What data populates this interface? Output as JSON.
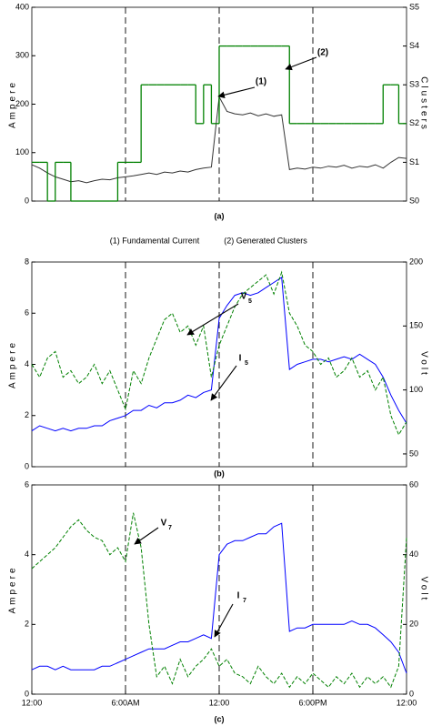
{
  "chart_data": [
    {
      "type": "line",
      "label": "(a)",
      "ylabel": "Ampere",
      "y2label": "Clusters",
      "xlim": [
        0,
        24
      ],
      "ylim": [
        0,
        400
      ],
      "yticks": [
        0,
        100,
        200,
        300,
        400
      ],
      "y2lim": [
        0,
        5
      ],
      "y2ticks": [
        {
          "value": 0,
          "label": "S0"
        },
        {
          "value": 1,
          "label": "S1"
        },
        {
          "value": 2,
          "label": "S2"
        },
        {
          "value": 3,
          "label": "S3"
        },
        {
          "value": 4,
          "label": "S4"
        },
        {
          "value": 5,
          "label": "S5"
        }
      ],
      "left_color": "#000000",
      "right_color": "#008000",
      "vlines": [
        6,
        12,
        18
      ],
      "legend": "bottom",
      "annotations": [
        {
          "text": "(1)"
        },
        {
          "text": "(2)"
        }
      ],
      "x": [
        0,
        0.5,
        1,
        1.5,
        2,
        2.5,
        3,
        3.5,
        4,
        4.5,
        5,
        5.5,
        6,
        6.5,
        7,
        7.5,
        8,
        8.5,
        9,
        9.5,
        10,
        10.5,
        11,
        11.5,
        12,
        12.5,
        13,
        13.5,
        14,
        14.5,
        15,
        15.5,
        16,
        16.5,
        17,
        17.5,
        18,
        18.5,
        19,
        19.5,
        20,
        20.5,
        21,
        21.5,
        22,
        22.5,
        23,
        23.5,
        24
      ],
      "series": [
        {
          "name": "(1) Fundamental Current",
          "color": "#333333",
          "style": "solid",
          "values": [
            75,
            68,
            58,
            50,
            45,
            40,
            42,
            38,
            42,
            45,
            44,
            48,
            50,
            52,
            55,
            58,
            55,
            60,
            58,
            62,
            60,
            65,
            68,
            70,
            215,
            185,
            180,
            178,
            182,
            176,
            180,
            175,
            178,
            65,
            68,
            66,
            70,
            68,
            72,
            70,
            74,
            68,
            72,
            70,
            75,
            68,
            80,
            90,
            88
          ]
        },
        {
          "name": "(2) Generated Clusters",
          "color": "#008000",
          "style": "step",
          "axis": "y2",
          "values": [
            1,
            1,
            0,
            1,
            1,
            0,
            0,
            0,
            0,
            0,
            0,
            1,
            1,
            1,
            3,
            3,
            3,
            3,
            3,
            3,
            3,
            2,
            3,
            2,
            4,
            4,
            4,
            4,
            4,
            4,
            4,
            4,
            4,
            2,
            2,
            2,
            2,
            2,
            2,
            2,
            2,
            2,
            2,
            2,
            2,
            3,
            3,
            2,
            2
          ]
        }
      ]
    },
    {
      "type": "line",
      "label": "(b)",
      "ylabel": "Ampere",
      "y2label": "Volt",
      "xlim": [
        0,
        24
      ],
      "ylim": [
        0,
        8
      ],
      "yticks": [
        0,
        2,
        4,
        6,
        8
      ],
      "y2lim": [
        40,
        200
      ],
      "y2ticks": [
        50,
        100,
        150,
        200
      ],
      "left_color": "#0000ff",
      "right_color": "#008000",
      "vlines": [
        6,
        12,
        18
      ],
      "annotations": [
        {
          "text": "V",
          "sub": "5"
        },
        {
          "text": "I",
          "sub": "5"
        }
      ],
      "x": [
        0,
        0.5,
        1,
        1.5,
        2,
        2.5,
        3,
        3.5,
        4,
        4.5,
        5,
        5.5,
        6,
        6.5,
        7,
        7.5,
        8,
        8.5,
        9,
        9.5,
        10,
        10.5,
        11,
        11.5,
        12,
        12.5,
        13,
        13.5,
        14,
        14.5,
        15,
        15.5,
        16,
        16.5,
        17,
        17.5,
        18,
        18.5,
        19,
        19.5,
        20,
        20.5,
        21,
        21.5,
        22,
        22.5,
        23,
        23.5,
        24
      ],
      "series": [
        {
          "color": "#0000ff",
          "style": "solid",
          "values": [
            1.4,
            1.6,
            1.5,
            1.4,
            1.5,
            1.4,
            1.5,
            1.5,
            1.6,
            1.6,
            1.8,
            1.9,
            2.0,
            2.2,
            2.2,
            2.4,
            2.3,
            2.5,
            2.5,
            2.6,
            2.8,
            2.7,
            2.9,
            3.0,
            5.8,
            6.3,
            6.7,
            6.8,
            6.7,
            6.8,
            7.0,
            7.2,
            7.4,
            3.8,
            4.0,
            4.1,
            4.2,
            4.2,
            4.1,
            4.2,
            4.3,
            4.2,
            4.4,
            4.2,
            4.0,
            3.5,
            2.8,
            2.2,
            1.7
          ]
        },
        {
          "color": "#008000",
          "style": "dashed",
          "axis": "y2",
          "values": [
            120,
            110,
            125,
            130,
            110,
            115,
            105,
            110,
            120,
            105,
            115,
            100,
            85,
            115,
            105,
            125,
            140,
            155,
            160,
            145,
            150,
            135,
            150,
            110,
            135,
            150,
            165,
            175,
            180,
            185,
            190,
            175,
            192,
            160,
            150,
            135,
            130,
            120,
            125,
            110,
            115,
            125,
            110,
            115,
            100,
            110,
            80,
            65,
            75
          ]
        }
      ]
    },
    {
      "type": "line",
      "label": "(c)",
      "ylabel": "Ampere",
      "y2label": "Volt",
      "xlim": [
        0,
        24
      ],
      "ylim": [
        0,
        6
      ],
      "yticks": [
        0,
        2,
        4,
        6
      ],
      "y2lim": [
        0,
        60
      ],
      "y2ticks": [
        0,
        20,
        40,
        60
      ],
      "xticks": [
        {
          "value": 0,
          "label": "12:00"
        },
        {
          "value": 6,
          "label": "6:00AM"
        },
        {
          "value": 12,
          "label": "12:00"
        },
        {
          "value": 18,
          "label": "6:00PM"
        },
        {
          "value": 24,
          "label": "12:00"
        }
      ],
      "left_color": "#0000ff",
      "right_color": "#008000",
      "vlines": [
        6,
        12,
        18
      ],
      "annotations": [
        {
          "text": "V",
          "sub": "7"
        },
        {
          "text": "I",
          "sub": "7"
        }
      ],
      "x": [
        0,
        0.5,
        1,
        1.5,
        2,
        2.5,
        3,
        3.5,
        4,
        4.5,
        5,
        5.5,
        6,
        6.5,
        7,
        7.5,
        8,
        8.5,
        9,
        9.5,
        10,
        10.5,
        11,
        11.5,
        12,
        12.5,
        13,
        13.5,
        14,
        14.5,
        15,
        15.5,
        16,
        16.5,
        17,
        17.5,
        18,
        18.5,
        19,
        19.5,
        20,
        20.5,
        21,
        21.5,
        22,
        22.5,
        23,
        23.5,
        24
      ],
      "series": [
        {
          "color": "#0000ff",
          "style": "solid",
          "values": [
            0.7,
            0.8,
            0.8,
            0.7,
            0.8,
            0.7,
            0.7,
            0.7,
            0.7,
            0.8,
            0.8,
            0.9,
            1.0,
            1.1,
            1.2,
            1.3,
            1.3,
            1.3,
            1.4,
            1.5,
            1.5,
            1.6,
            1.7,
            1.6,
            4.0,
            4.3,
            4.4,
            4.4,
            4.5,
            4.6,
            4.6,
            4.8,
            4.9,
            1.8,
            1.9,
            1.9,
            2.0,
            2.0,
            2.0,
            2.0,
            2.0,
            2.1,
            2.0,
            2.0,
            1.9,
            1.7,
            1.5,
            1.2,
            0.6
          ]
        },
        {
          "color": "#008000",
          "style": "dashed",
          "axis": "y2",
          "values": [
            36,
            38,
            40,
            42,
            45,
            48,
            50,
            47,
            45,
            44,
            40,
            42,
            38,
            52,
            42,
            20,
            5,
            8,
            3,
            10,
            5,
            8,
            10,
            13,
            8,
            10,
            6,
            5,
            3,
            8,
            5,
            3,
            6,
            2,
            5,
            3,
            6,
            4,
            2,
            5,
            3,
            6,
            2,
            5,
            3,
            5,
            2,
            8,
            45
          ]
        }
      ]
    }
  ]
}
